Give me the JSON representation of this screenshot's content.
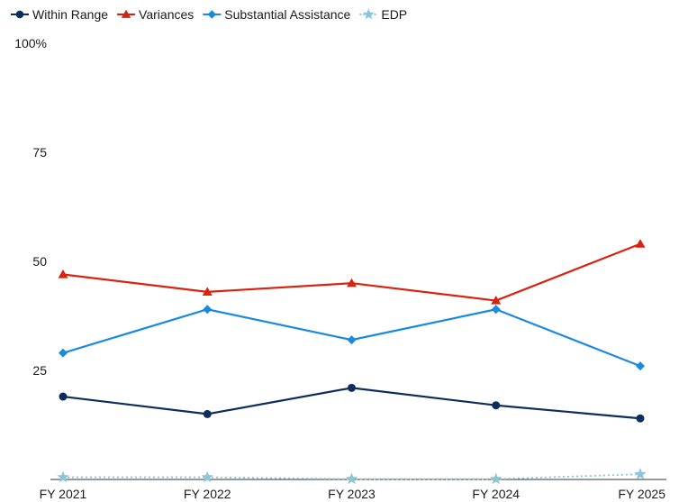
{
  "chart_data": {
    "type": "line",
    "categories": [
      "FY 2021",
      "FY 2022",
      "FY 2023",
      "FY 2024",
      "FY 2025"
    ],
    "ylim": [
      0,
      100
    ],
    "y_ticks": [
      "25",
      "50",
      "75",
      "100%"
    ],
    "y_tick_values": [
      25,
      50,
      75,
      100
    ],
    "grid": false,
    "legend_position": "top-left",
    "series": [
      {
        "name": "Within Range",
        "color": "#0d2d5c",
        "marker": "circle",
        "dashed": false,
        "values": [
          19,
          15,
          21,
          17,
          14
        ]
      },
      {
        "name": "Variances",
        "color": "#d9230f",
        "marker": "triangle",
        "dashed": false,
        "values": [
          47,
          43,
          45,
          41,
          54
        ]
      },
      {
        "name": "Substantial Assistance",
        "color": "#1a8ae0",
        "marker": "diamond",
        "dashed": false,
        "values": [
          29,
          39,
          32,
          39,
          26
        ]
      },
      {
        "name": "EDP",
        "color": "#8cc4dc",
        "marker": "star",
        "dashed": true,
        "values": [
          0.5,
          0.5,
          0.1,
          0.1,
          1.2
        ]
      }
    ]
  }
}
